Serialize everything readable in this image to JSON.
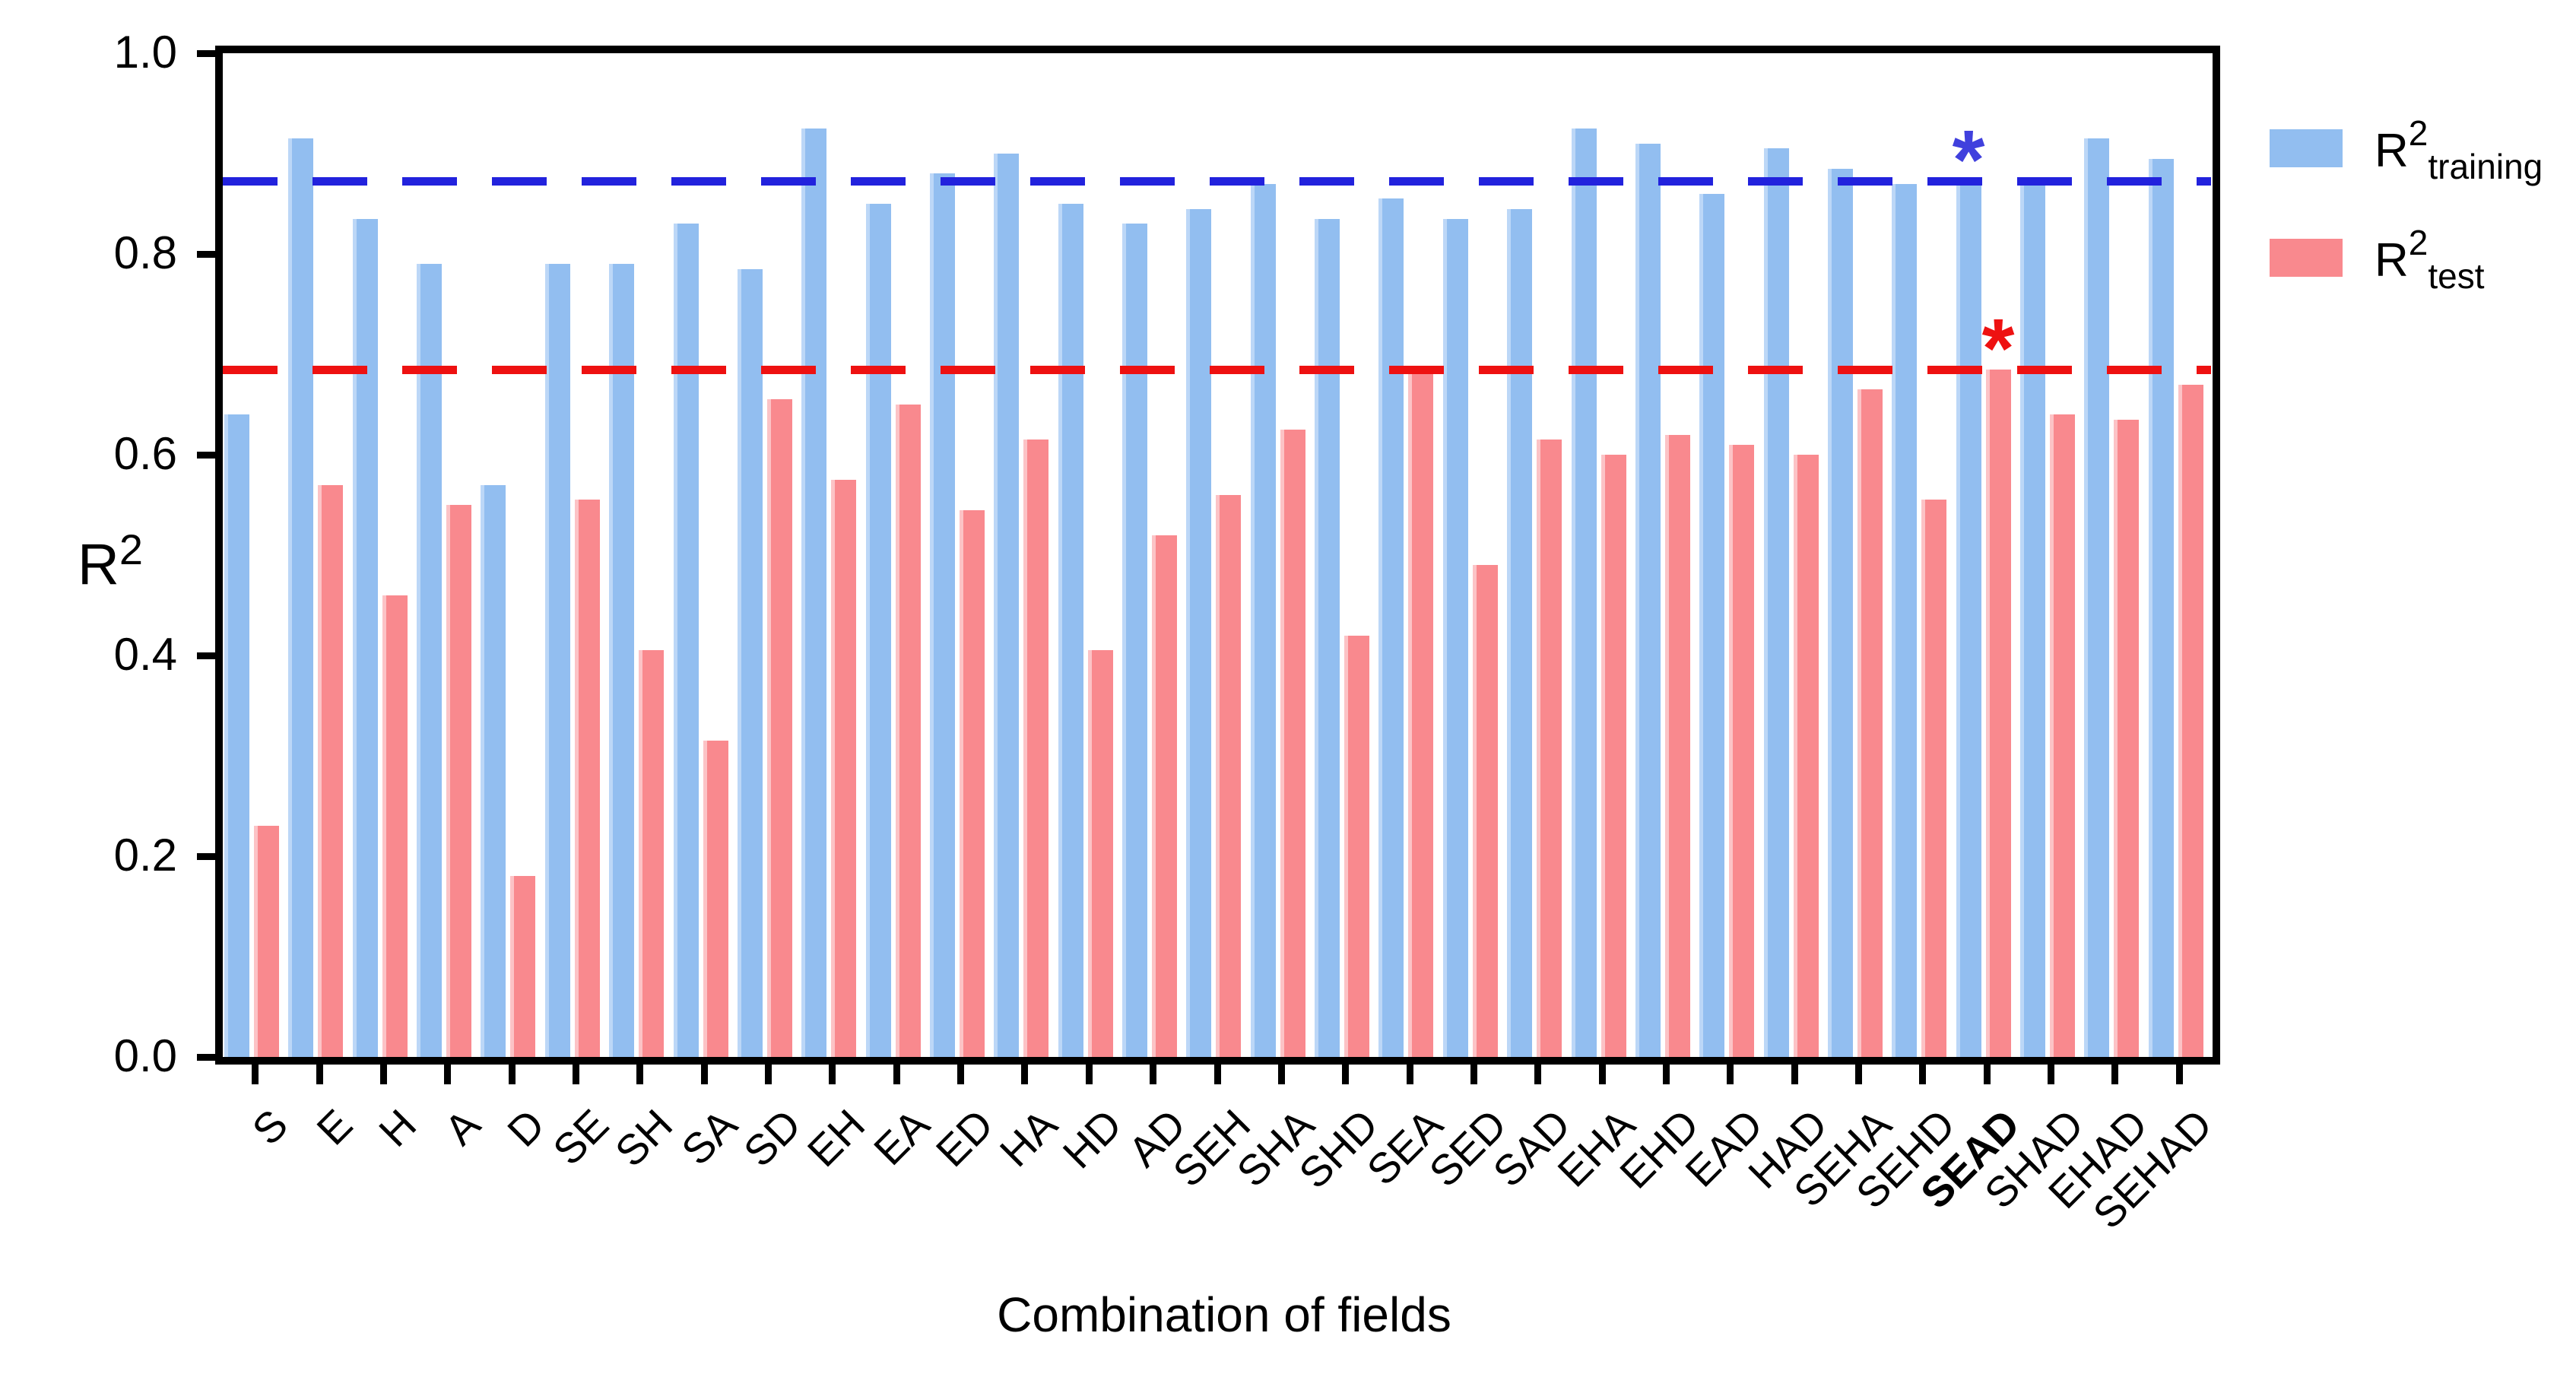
{
  "figure": {
    "xlabel": "Combination of fields",
    "ylabel": {
      "base": "R",
      "sup": "2"
    }
  },
  "legend": [
    {
      "name": "training",
      "swatch_color": "#92BEF0",
      "label": {
        "base": "R",
        "sup": "2",
        "sub": "training"
      }
    },
    {
      "name": "test",
      "swatch_color": "#F9898E",
      "label": {
        "base": "R",
        "sup": "2",
        "sub": "test"
      }
    }
  ],
  "chart_data": {
    "type": "bar",
    "title": "",
    "xlabel": "Combination of fields",
    "ylabel": "R2",
    "ylim": [
      0.0,
      1.0
    ],
    "yticks": [
      "1.0",
      "0.8",
      "0.6",
      "0.4",
      "0.2",
      "0.0"
    ],
    "grid": false,
    "legend_position": "top-right",
    "highlight_category": "SEAD",
    "categories": [
      "S",
      "E",
      "H",
      "A",
      "D",
      "SE",
      "SH",
      "SA",
      "SD",
      "EH",
      "EA",
      "ED",
      "HA",
      "HD",
      "AD",
      "SEH",
      "SHA",
      "SHD",
      "SEA",
      "SED",
      "SAD",
      "EHA",
      "EHD",
      "EAD",
      "HAD",
      "SEHA",
      "SEHD",
      "SEAD",
      "SHAD",
      "EHAD",
      "SEHAD"
    ],
    "series": [
      {
        "name": "R2_training",
        "legend": "R2 training",
        "color": "#92BEF0",
        "values": [
          0.64,
          0.915,
          0.835,
          0.79,
          0.57,
          0.79,
          0.79,
          0.83,
          0.785,
          0.925,
          0.85,
          0.88,
          0.9,
          0.85,
          0.83,
          0.845,
          0.87,
          0.835,
          0.855,
          0.835,
          0.845,
          0.925,
          0.91,
          0.86,
          0.905,
          0.885,
          0.87,
          0.873,
          0.875,
          0.915,
          0.895
        ]
      },
      {
        "name": "R2_test",
        "legend": "R2 test",
        "color": "#F9898E",
        "values": [
          0.23,
          0.57,
          0.46,
          0.55,
          0.18,
          0.555,
          0.405,
          0.315,
          0.655,
          0.575,
          0.65,
          0.545,
          0.615,
          0.405,
          0.52,
          0.56,
          0.625,
          0.42,
          0.68,
          0.49,
          0.615,
          0.6,
          0.62,
          0.61,
          0.6,
          0.665,
          0.555,
          0.685,
          0.64,
          0.635,
          0.67
        ]
      }
    ],
    "ref_lines": [
      {
        "name": "training-reference",
        "value": 0.873,
        "color": "#2222DD",
        "style": "dashed"
      },
      {
        "name": "test-reference",
        "value": 0.685,
        "color": "#EE1111",
        "style": "dashed"
      }
    ],
    "annotations": [
      {
        "symbol": "*",
        "color": "#4040DD",
        "category": "SEAD",
        "series": "R2_training",
        "value": 0.873
      },
      {
        "symbol": "*",
        "color": "#EE1111",
        "category": "SEAD",
        "series": "R2_test",
        "value": 0.685
      }
    ]
  }
}
